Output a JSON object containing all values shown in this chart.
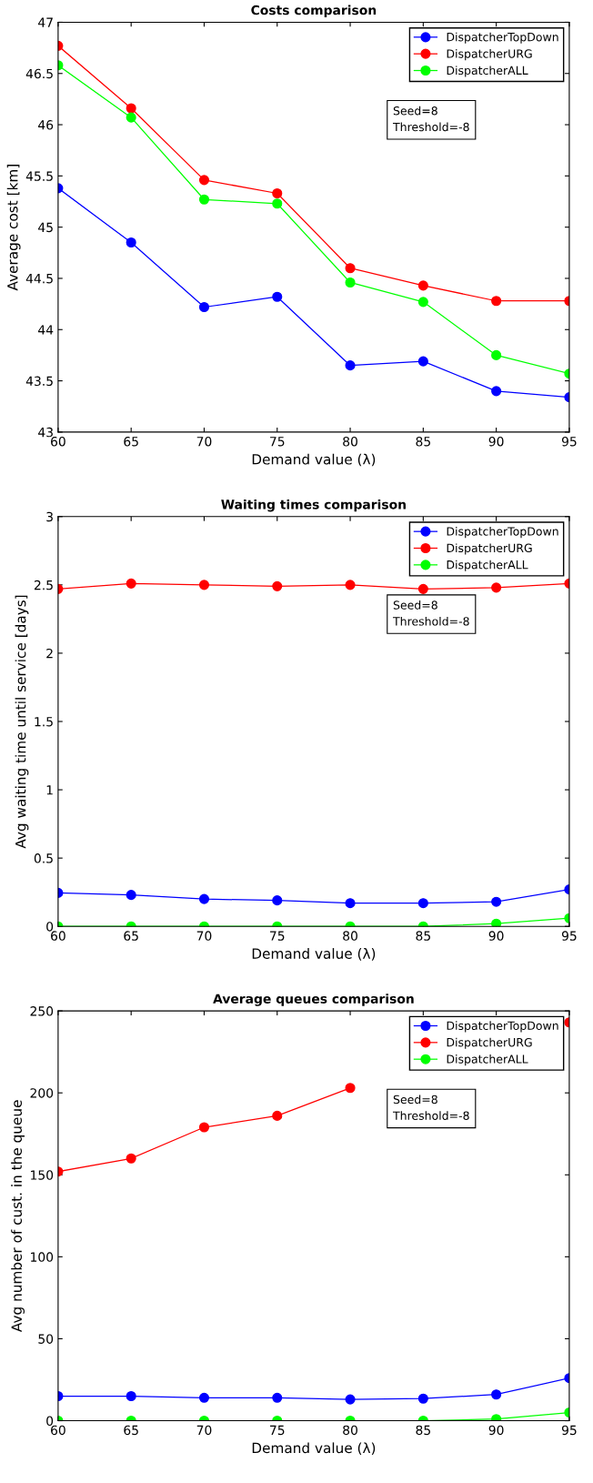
{
  "chart_data": [
    {
      "type": "line",
      "title": "Costs comparison",
      "xlabel": "Demand value (λ)",
      "ylabel": "Average cost [km]",
      "x": [
        60,
        65,
        70,
        75,
        80,
        85,
        90,
        95
      ],
      "xlim": [
        60,
        95
      ],
      "xticks": [
        60,
        65,
        70,
        75,
        80,
        85,
        90,
        95
      ],
      "ylim": [
        43,
        47
      ],
      "yticks": [
        43,
        43.5,
        44,
        44.5,
        45,
        45.5,
        46,
        46.5,
        47
      ],
      "marker": "circle",
      "legend": "top right",
      "grid": false,
      "annotations": [
        "Seed=8\nThreshold=-8"
      ],
      "series": [
        {
          "name": "DispatcherTopDown",
          "color": "#0000ff",
          "values": [
            45.38,
            44.85,
            44.22,
            44.32,
            43.65,
            43.69,
            43.4,
            43.34
          ]
        },
        {
          "name": "DispatcherURG",
          "color": "#ff0000",
          "values": [
            46.77,
            46.16,
            45.46,
            45.33,
            44.6,
            44.43,
            44.28,
            44.28
          ]
        },
        {
          "name": "DispatcherALL",
          "color": "#00ff00",
          "values": [
            46.58,
            46.07,
            45.27,
            45.23,
            44.46,
            44.27,
            43.75,
            43.57
          ]
        }
      ]
    },
    {
      "type": "line",
      "title": "Waiting times comparison",
      "xlabel": "Demand value (λ)",
      "ylabel": "Avg waiting time until service [days]",
      "x": [
        60,
        65,
        70,
        75,
        80,
        85,
        90,
        95
      ],
      "xlim": [
        60,
        95
      ],
      "xticks": [
        60,
        65,
        70,
        75,
        80,
        85,
        90,
        95
      ],
      "ylim": [
        0,
        3
      ],
      "yticks": [
        0,
        0.5,
        1,
        1.5,
        2,
        2.5,
        3
      ],
      "marker": "circle",
      "legend": "top right",
      "grid": false,
      "annotations": [
        "Seed=8\nThreshold=-8"
      ],
      "series": [
        {
          "name": "DispatcherTopDown",
          "color": "#0000ff",
          "values": [
            0.245,
            0.23,
            0.2,
            0.19,
            0.17,
            0.17,
            0.18,
            0.27
          ]
        },
        {
          "name": "DispatcherURG",
          "color": "#ff0000",
          "values": [
            2.47,
            2.51,
            2.5,
            2.49,
            2.5,
            2.47,
            2.48,
            2.51
          ]
        },
        {
          "name": "DispatcherALL",
          "color": "#00ff00",
          "values": [
            0,
            0,
            0,
            0,
            0,
            0,
            0.02,
            0.06
          ]
        }
      ]
    },
    {
      "type": "line",
      "title": "Average queues comparison",
      "xlabel": "Demand value (λ)",
      "ylabel": "Avg number of cust. in the queue",
      "x": [
        60,
        65,
        70,
        75,
        80,
        85,
        90,
        95
      ],
      "xlim": [
        60,
        95
      ],
      "xticks": [
        60,
        65,
        70,
        75,
        80,
        85,
        90,
        95
      ],
      "ylim": [
        0,
        250
      ],
      "yticks": [
        0,
        50,
        100,
        150,
        200,
        250
      ],
      "marker": "circle",
      "legend": "top right",
      "grid": false,
      "annotations": [
        "Seed=8\nThreshold=-8"
      ],
      "series": [
        {
          "name": "DispatcherTopDown",
          "color": "#0000ff",
          "values": [
            15,
            15,
            14,
            14,
            13,
            13.5,
            16,
            26
          ]
        },
        {
          "name": "DispatcherURG",
          "color": "#ff0000",
          "values": [
            152,
            160,
            179,
            186,
            203,
            null,
            null,
            243
          ]
        },
        {
          "name": "DispatcherALL",
          "color": "#00ff00",
          "values": [
            0,
            0,
            0,
            0,
            0,
            0,
            1,
            5
          ]
        }
      ]
    }
  ]
}
